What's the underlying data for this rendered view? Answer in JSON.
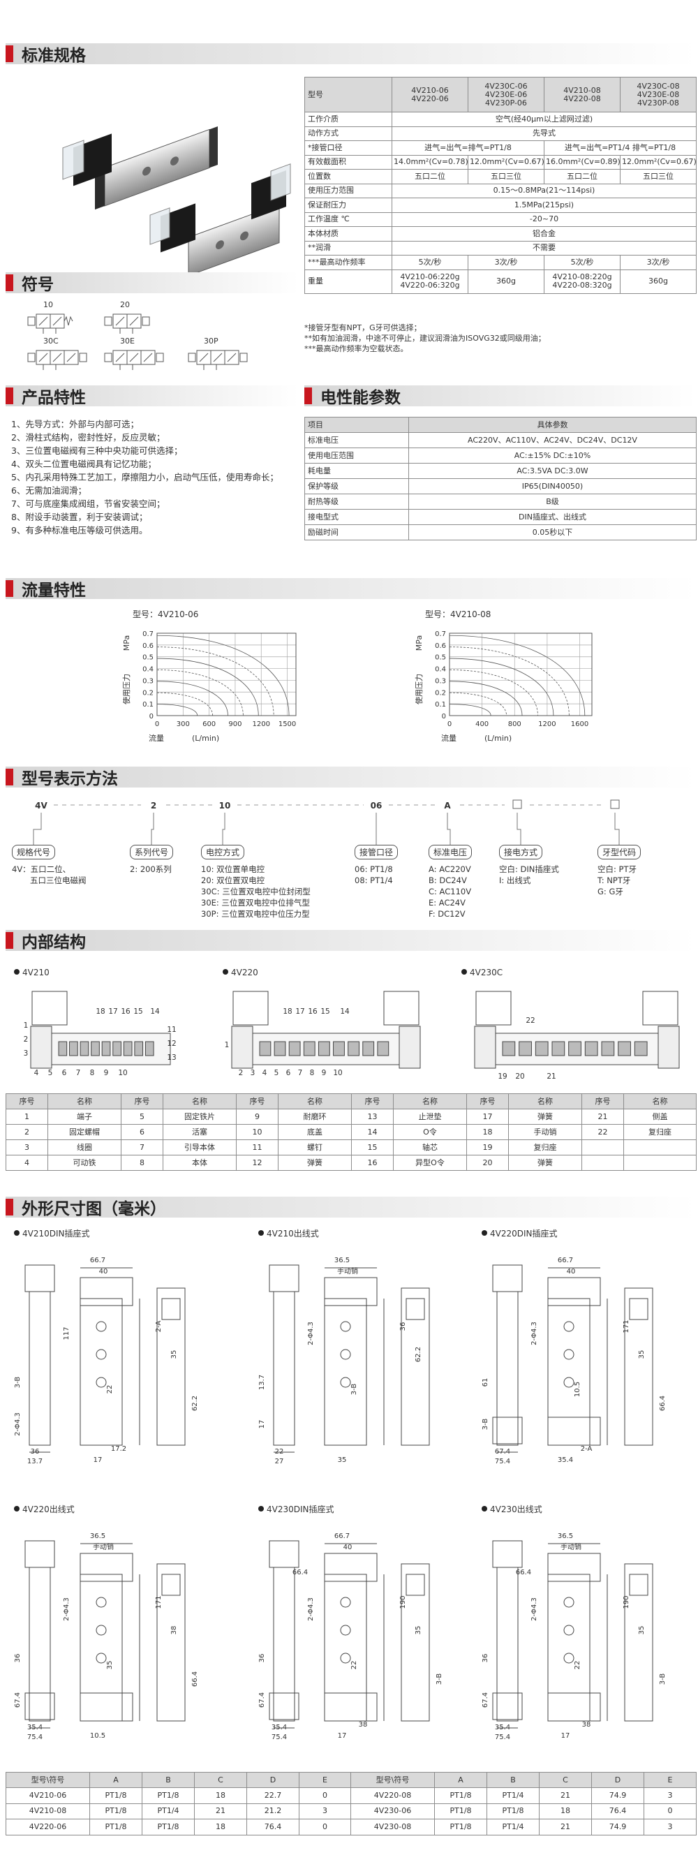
{
  "sections": {
    "specs": "标准规格",
    "symbols": "符号",
    "features": "产品特性",
    "electrical": "电性能参数",
    "flow": "流量特性",
    "model": "型号表示方法",
    "internal": "内部结构",
    "dimensions": "外形尺寸图（毫米）"
  },
  "spec": {
    "header": {
      "label": "型号",
      "cells": [
        [
          "4V210-06",
          "4V220-06"
        ],
        [
          "4V230C-06",
          "4V230E-06",
          "4V230P-06"
        ],
        [
          "4V210-08",
          "4V220-08"
        ],
        [
          "4V230C-08",
          "4V230E-08",
          "4V230P-08"
        ]
      ]
    },
    "rows": [
      {
        "label": "工作介质",
        "cells": [
          "空气(经40μm以上滤网过滤)"
        ]
      },
      {
        "label": "动作方式",
        "cells": [
          "先导式"
        ]
      },
      {
        "label": "*接管口径",
        "cells": [
          "进气=出气=排气=PT1/8",
          "进气=出气=PT1/4  排气=PT1/8"
        ]
      },
      {
        "label": "有效截面积",
        "cells": [
          "14.0mm²(Cv=0.78)",
          "12.0mm²(Cv=0.67)",
          "16.0mm²(Cv=0.89)",
          "12.0mm²(Cv=0.67)"
        ]
      },
      {
        "label": "位置数",
        "cells": [
          "五口二位",
          "五口三位",
          "五口二位",
          "五口三位"
        ]
      },
      {
        "label": "使用压力范围",
        "cells": [
          "0.15～0.8MPa(21～114psi)"
        ]
      },
      {
        "label": "保证耐压力",
        "cells": [
          "1.5MPa(215psi)"
        ]
      },
      {
        "label": "工作温度 ℃",
        "cells": [
          "-20~70"
        ]
      },
      {
        "label": "本体材质",
        "cells": [
          "铝合金"
        ]
      },
      {
        "label": "**润滑",
        "cells": [
          "不需要"
        ]
      },
      {
        "label": "***最高动作频率",
        "cells": [
          "5次/秒",
          "3次/秒",
          "5次/秒",
          "3次/秒"
        ]
      },
      {
        "label": "重量",
        "cells": [
          [
            "4V210-06:220g",
            "4V220-06:320g"
          ],
          "360g",
          [
            "4V210-08:220g",
            "4V220-08:320g"
          ],
          "360g"
        ]
      }
    ],
    "notes": [
      "*接管牙型有NPT，G牙可供选择；",
      "**如有加油润滑，中途不可停止，建议润滑油为ISOVG32或同级用油；",
      "***最高动作频率为空载状态。"
    ]
  },
  "symbols": [
    "10",
    "20",
    "30C",
    "30E",
    "30P"
  ],
  "features": [
    "1、先导方式：外部与内部可选；",
    "2、滑柱式结构，密封性好，反应灵敏；",
    "3、三位置电磁阀有三种中央功能可供选择；",
    "4、双头二位置电磁阀具有记忆功能；",
    "5、内孔采用特殊工艺加工，摩擦阻力小，启动气压低，使用寿命长；",
    "6、无需加油润滑；",
    "7、可与底座集成阀组，节省安装空间；",
    "8、附设手动装置，利于安装调试；",
    "9、有多种标准电压等级可供选用。"
  ],
  "electrical": [
    [
      "项目",
      "具体参数"
    ],
    [
      "标准电压",
      "AC220V、AC110V、AC24V、DC24V、DC12V"
    ],
    [
      "使用电压范围",
      "AC:±15%   DC:±10%"
    ],
    [
      "耗电量",
      "AC:3.5VA   DC:3.0W"
    ],
    [
      "保护等级",
      "IP65(DIN40050)"
    ],
    [
      "耐热等级",
      "B级"
    ],
    [
      "接电型式",
      "DIN插座式、出线式"
    ],
    [
      "励磁时间",
      "0.05秒以下"
    ]
  ],
  "flow_charts": [
    {
      "title": "型号：4V210-06",
      "y_unit": "MPa",
      "y_label": "使用压力",
      "x_label": "流量",
      "x_unit": "(L/min)",
      "xlim": [
        0,
        1600
      ],
      "xticks": [
        0,
        300,
        600,
        900,
        1200,
        1500
      ],
      "ylim": [
        0,
        0.7
      ],
      "yticks": [
        0,
        0.1,
        0.2,
        0.3,
        0.4,
        0.5,
        0.6,
        0.7
      ]
    },
    {
      "title": "型号：4V210-08",
      "y_unit": "MPa",
      "y_label": "使用压力",
      "x_label": "流量",
      "x_unit": "(L/min)",
      "xlim": [
        0,
        1750
      ],
      "xticks": [
        0,
        400,
        800,
        1200,
        1600
      ],
      "ylim": [
        0,
        0.7
      ],
      "yticks": [
        0,
        0.1,
        0.2,
        0.3,
        0.4,
        0.5,
        0.6,
        0.7
      ]
    }
  ],
  "model": {
    "codes": [
      "4V",
      "2",
      "10",
      "06",
      "A"
    ],
    "groups": [
      {
        "label": "规格代号",
        "lines": [
          "4V：五口二位、",
          "五口三位电磁阀"
        ]
      },
      {
        "label": "系列代号",
        "lines": [
          "2: 200系列"
        ]
      },
      {
        "label": "电控方式",
        "lines": [
          "10: 双位置单电控",
          "20: 双位置双电控",
          "30C: 三位置双电控中位封闭型",
          "30E: 三位置双电控中位排气型",
          "30P: 三位置双电控中位压力型"
        ]
      },
      {
        "label": "接管口径",
        "lines": [
          "06: PT1/8",
          "08: PT1/4"
        ]
      },
      {
        "label": "标准电压",
        "lines": [
          "A: AC220V",
          "B: DC24V",
          "C: AC110V",
          "E: AC24V",
          "F: DC12V"
        ]
      },
      {
        "label": "接电方式",
        "lines": [
          "空白: DIN插座式",
          "I: 出线式"
        ]
      },
      {
        "label": "牙型代码",
        "lines": [
          "空白: PT牙",
          "T: NPT牙",
          "G: G牙"
        ]
      }
    ]
  },
  "internal": {
    "drawings": [
      {
        "label": "4V210",
        "callouts": [
          "18",
          "17",
          "16",
          "15",
          "14",
          "1",
          "2",
          "3",
          "4",
          "5",
          "6",
          "7",
          "8",
          "9",
          "10",
          "11",
          "12",
          "13"
        ]
      },
      {
        "label": "4V220",
        "callouts": [
          "18",
          "17",
          "16",
          "15",
          "14",
          "1",
          "2",
          "3",
          "4",
          "5",
          "6",
          "7",
          "8",
          "9",
          "10"
        ]
      },
      {
        "label": "4V230C",
        "callouts": [
          "22",
          "19",
          "20",
          "21"
        ]
      }
    ],
    "parts": {
      "header": [
        "序号",
        "名称"
      ],
      "rows": [
        [
          "1",
          "端子",
          "5",
          "固定铁片",
          "9",
          "耐磨环",
          "13",
          "止泄垫",
          "17",
          "弹簧",
          "21",
          "侧盖"
        ],
        [
          "2",
          "固定螺帽",
          "6",
          "活塞",
          "10",
          "底盖",
          "14",
          "O令",
          "18",
          "手动销",
          "22",
          "复归座"
        ],
        [
          "3",
          "线圈",
          "7",
          "引导本体",
          "11",
          "螺钉",
          "15",
          "轴芯",
          "19",
          "复归座",
          null,
          null
        ],
        [
          "4",
          "可动铁",
          "8",
          "本体",
          "12",
          "弹簧",
          "16",
          "异型O令",
          "20",
          "弹簧",
          null,
          null
        ]
      ]
    }
  },
  "dimensions": {
    "drawings": [
      {
        "label": "4V210DIN插座式",
        "dims": [
          "66.7",
          "40",
          "117",
          "2-A",
          "3-B",
          "2-Φ4.3",
          "36",
          "13.7",
          "17",
          "22",
          "35",
          "62.2",
          "17.2"
        ]
      },
      {
        "label": "4V210出线式",
        "dims": [
          "36.5",
          "手动销",
          "2-Φ4.3",
          "36",
          "13.7",
          "17",
          "22",
          "27",
          "35",
          "3-B",
          "62.2"
        ]
      },
      {
        "label": "4V220DIN插座式",
        "dims": [
          "66.7",
          "40",
          "2-Φ4.3",
          "171",
          "61",
          "3-B",
          "67.4",
          "75.4",
          "35.4",
          "10.5",
          "35",
          "66.4",
          "2-A"
        ]
      },
      {
        "label": "4V220出线式",
        "dims": [
          "36.5",
          "手动销",
          "2-Φ4.3",
          "171",
          "36",
          "67.4",
          "35.4",
          "75.4",
          "10.5",
          "35",
          "38",
          "66.4"
        ]
      },
      {
        "label": "4V230DIN插座式",
        "dims": [
          "66.7",
          "40",
          "2-Φ4.3",
          "190",
          "36",
          "67.4",
          "35.4",
          "75.4",
          "17",
          "22",
          "35",
          "3-B",
          "38",
          "66.4"
        ]
      },
      {
        "label": "4V230出线式",
        "dims": [
          "36.5",
          "手动销",
          "2-Φ4.3",
          "190",
          "36",
          "67.4",
          "35.4",
          "75.4",
          "17",
          "22",
          "35",
          "3-B",
          "38",
          "66.4"
        ]
      }
    ],
    "table": {
      "header": [
        "型号\\符号",
        "A",
        "B",
        "C",
        "D",
        "E"
      ],
      "rows": [
        [
          "4V210-06",
          "PT1/8",
          "PT1/8",
          "18",
          "22.7",
          "0",
          "4V220-08",
          "PT1/8",
          "PT1/4",
          "21",
          "74.9",
          "3"
        ],
        [
          "4V210-08",
          "PT1/8",
          "PT1/4",
          "21",
          "21.2",
          "3",
          "4V230-06",
          "PT1/8",
          "PT1/8",
          "18",
          "76.4",
          "0"
        ],
        [
          "4V220-06",
          "PT1/8",
          "PT1/8",
          "18",
          "76.4",
          "0",
          "4V230-08",
          "PT1/8",
          "PT1/4",
          "21",
          "74.9",
          "3"
        ]
      ]
    }
  }
}
